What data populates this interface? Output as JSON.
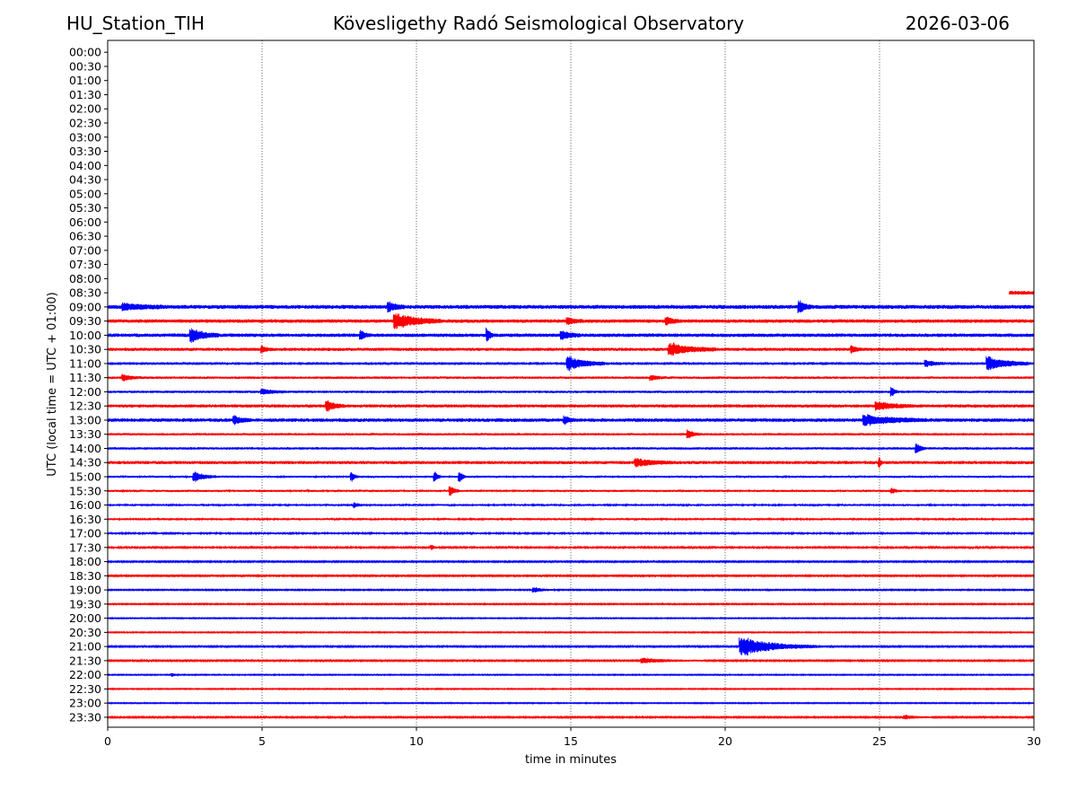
{
  "header": {
    "station": "HU_Station_TIH",
    "title": "Kövesligethy Radó Seismological Observatory",
    "date": "2026-03-06"
  },
  "chart_data": {
    "type": "line",
    "xlabel": "time in minutes",
    "ylabel": "UTC (local time = UTC + 01:00)",
    "xlim": [
      0,
      30
    ],
    "x_ticks": [
      0,
      5,
      10,
      15,
      20,
      25,
      30
    ],
    "x_gridlines": [
      5,
      10,
      15,
      20,
      25
    ],
    "grid": "vertical dotted lines at every 5 minutes",
    "row_labels": [
      "00:00",
      "00:30",
      "01:00",
      "01:30",
      "02:00",
      "02:30",
      "03:00",
      "03:30",
      "04:00",
      "04:30",
      "05:00",
      "05:30",
      "06:00",
      "06:30",
      "07:00",
      "07:30",
      "08:00",
      "08:30",
      "09:00",
      "09:30",
      "10:00",
      "10:30",
      "11:00",
      "11:30",
      "12:00",
      "12:30",
      "13:00",
      "13:30",
      "14:00",
      "14:30",
      "15:00",
      "15:30",
      "16:00",
      "16:30",
      "17:00",
      "17:30",
      "18:00",
      "18:30",
      "19:00",
      "19:30",
      "20:00",
      "20:30",
      "21:00",
      "21:30",
      "22:00",
      "22:30",
      "23:00",
      "23:30"
    ],
    "colors": {
      "even_hour": "#0000ff",
      "half_hour": "#ff0000"
    },
    "traces": [
      {
        "row": "08:30",
        "start": 29.2,
        "end": 30,
        "amp": 2.2,
        "events": []
      },
      {
        "row": "09:00",
        "start": 0,
        "end": 30,
        "amp": 2.2,
        "events": [
          {
            "t": 9.1,
            "a": 5,
            "d": 0.5
          },
          {
            "t": 22.4,
            "a": 6,
            "d": 0.4
          },
          {
            "t": 0.5,
            "a": 3,
            "d": 1.5
          }
        ]
      },
      {
        "row": "09:30",
        "start": 0,
        "end": 30,
        "amp": 2.0,
        "events": [
          {
            "t": 9.3,
            "a": 8,
            "d": 1.5
          },
          {
            "t": 18.1,
            "a": 4,
            "d": 0.4
          },
          {
            "t": 14.9,
            "a": 3,
            "d": 0.5
          }
        ]
      },
      {
        "row": "10:00",
        "start": 0,
        "end": 30,
        "amp": 2.0,
        "events": [
          {
            "t": 2.7,
            "a": 7,
            "d": 0.9
          },
          {
            "t": 8.2,
            "a": 5,
            "d": 0.3
          },
          {
            "t": 12.3,
            "a": 7,
            "d": 0.2
          },
          {
            "t": 14.7,
            "a": 4,
            "d": 0.6
          }
        ]
      },
      {
        "row": "10:30",
        "start": 0,
        "end": 30,
        "amp": 1.8,
        "events": [
          {
            "t": 18.2,
            "a": 6,
            "d": 1.5
          },
          {
            "t": 24.1,
            "a": 4,
            "d": 0.3
          },
          {
            "t": 5,
            "a": 3,
            "d": 0.3
          }
        ]
      },
      {
        "row": "11:00",
        "start": 0,
        "end": 30,
        "amp": 1.6,
        "events": [
          {
            "t": 14.9,
            "a": 7,
            "d": 1.2
          },
          {
            "t": 28.5,
            "a": 7,
            "d": 1.3
          },
          {
            "t": 26.5,
            "a": 3,
            "d": 0.6
          }
        ]
      },
      {
        "row": "11:30",
        "start": 0,
        "end": 30,
        "amp": 1.4,
        "events": [
          {
            "t": 0.5,
            "a": 3,
            "d": 0.6
          },
          {
            "t": 17.6,
            "a": 2.5,
            "d": 0.5
          }
        ]
      },
      {
        "row": "12:00",
        "start": 0,
        "end": 30,
        "amp": 1.4,
        "events": [
          {
            "t": 25.4,
            "a": 5,
            "d": 0.2
          },
          {
            "t": 5,
            "a": 2.5,
            "d": 0.8
          }
        ]
      },
      {
        "row": "12:30",
        "start": 0,
        "end": 30,
        "amp": 1.8,
        "events": [
          {
            "t": 7.1,
            "a": 5,
            "d": 0.6
          },
          {
            "t": 24.9,
            "a": 4,
            "d": 1.2
          }
        ]
      },
      {
        "row": "13:00",
        "start": 0,
        "end": 30,
        "amp": 2.0,
        "events": [
          {
            "t": 24.5,
            "a": 5,
            "d": 2.0
          },
          {
            "t": 4.1,
            "a": 4,
            "d": 0.5
          },
          {
            "t": 14.8,
            "a": 4,
            "d": 0.3
          }
        ]
      },
      {
        "row": "13:30",
        "start": 0,
        "end": 30,
        "amp": 1.4,
        "events": [
          {
            "t": 18.8,
            "a": 4,
            "d": 0.4
          }
        ]
      },
      {
        "row": "14:00",
        "start": 0,
        "end": 30,
        "amp": 1.4,
        "events": [
          {
            "t": 26.2,
            "a": 5,
            "d": 0.3
          }
        ]
      },
      {
        "row": "14:30",
        "start": 0,
        "end": 30,
        "amp": 1.8,
        "events": [
          {
            "t": 17.1,
            "a": 4,
            "d": 1.2
          },
          {
            "t": 25,
            "a": 5,
            "d": 0.1
          }
        ]
      },
      {
        "row": "15:00",
        "start": 0,
        "end": 30,
        "amp": 1.2,
        "events": [
          {
            "t": 2.8,
            "a": 5,
            "d": 0.7
          },
          {
            "t": 7.9,
            "a": 5,
            "d": 0.2
          },
          {
            "t": 10.6,
            "a": 5,
            "d": 0.2
          },
          {
            "t": 11.4,
            "a": 6,
            "d": 0.2
          }
        ]
      },
      {
        "row": "15:30",
        "start": 0,
        "end": 30,
        "amp": 1.2,
        "events": [
          {
            "t": 11.1,
            "a": 5,
            "d": 0.3
          },
          {
            "t": 25.4,
            "a": 2.5,
            "d": 0.3
          }
        ]
      },
      {
        "row": "16:00",
        "start": 0,
        "end": 30,
        "amp": 1.1,
        "events": [
          {
            "t": 8,
            "a": 2.5,
            "d": 0.3
          }
        ]
      },
      {
        "row": "16:30",
        "start": 0,
        "end": 30,
        "amp": 1.1,
        "events": []
      },
      {
        "row": "17:00",
        "start": 0,
        "end": 30,
        "amp": 1.0,
        "events": []
      },
      {
        "row": "17:30",
        "start": 0,
        "end": 30,
        "amp": 0.9,
        "events": [
          {
            "t": 10.5,
            "a": 2.5,
            "d": 0.2
          }
        ]
      },
      {
        "row": "18:00",
        "start": 0,
        "end": 30,
        "amp": 0.8,
        "events": []
      },
      {
        "row": "18:30",
        "start": 0,
        "end": 30,
        "amp": 0.8,
        "events": []
      },
      {
        "row": "19:00",
        "start": 0,
        "end": 30,
        "amp": 0.7,
        "events": [
          {
            "t": 13.8,
            "a": 2.5,
            "d": 0.8
          }
        ]
      },
      {
        "row": "19:30",
        "start": 0,
        "end": 30,
        "amp": 0.7,
        "events": []
      },
      {
        "row": "20:00",
        "start": 0,
        "end": 30,
        "amp": 0.6,
        "events": []
      },
      {
        "row": "20:30",
        "start": 0,
        "end": 30,
        "amp": 0.6,
        "events": []
      },
      {
        "row": "21:00",
        "start": 0,
        "end": 30,
        "amp": 0.8,
        "events": [
          {
            "t": 20.5,
            "a": 10,
            "d": 2.5
          }
        ]
      },
      {
        "row": "21:30",
        "start": 0,
        "end": 30,
        "amp": 0.8,
        "events": [
          {
            "t": 17.3,
            "a": 2.5,
            "d": 2.0
          }
        ]
      },
      {
        "row": "22:00",
        "start": 0,
        "end": 30,
        "amp": 0.6,
        "events": [
          {
            "t": 2.1,
            "a": 2,
            "d": 0.2
          }
        ]
      },
      {
        "row": "22:30",
        "start": 0,
        "end": 30,
        "amp": 0.6,
        "events": []
      },
      {
        "row": "23:00",
        "start": 0,
        "end": 30,
        "amp": 0.6,
        "events": []
      },
      {
        "row": "23:30",
        "start": 0,
        "end": 30,
        "amp": 0.8,
        "events": [
          {
            "t": 25.8,
            "a": 2,
            "d": 1.0
          }
        ]
      }
    ]
  }
}
